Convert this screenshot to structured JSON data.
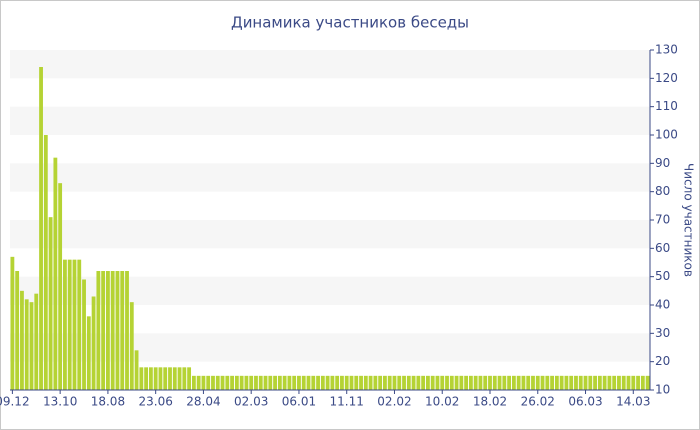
{
  "chart_data": {
    "type": "bar",
    "title": "Динамика участников беседы",
    "y_axis_label": "Число участников",
    "color": "#b5d334",
    "ylim": [
      10,
      130
    ],
    "yticks": [
      10,
      20,
      30,
      40,
      50,
      60,
      70,
      80,
      90,
      100,
      110,
      120,
      130
    ],
    "grid": "bands",
    "categories": [
      "09.12",
      null,
      null,
      null,
      null,
      null,
      null,
      null,
      null,
      null,
      "13.10",
      null,
      null,
      null,
      null,
      null,
      null,
      null,
      null,
      null,
      "18.08",
      null,
      null,
      null,
      null,
      null,
      null,
      null,
      null,
      null,
      "23.06",
      null,
      null,
      null,
      null,
      null,
      null,
      null,
      null,
      null,
      "28.04",
      null,
      null,
      null,
      null,
      null,
      null,
      null,
      null,
      null,
      "02.03",
      null,
      null,
      null,
      null,
      null,
      null,
      null,
      null,
      null,
      "06.01",
      null,
      null,
      null,
      null,
      null,
      null,
      null,
      null,
      null,
      "11.11",
      null,
      null,
      null,
      null,
      null,
      null,
      null,
      null,
      null,
      "02.02",
      null,
      null,
      null,
      null,
      null,
      null,
      null,
      null,
      null,
      "10.02",
      null,
      null,
      null,
      null,
      null,
      null,
      null,
      null,
      null,
      "18.02",
      null,
      null,
      null,
      null,
      null,
      null,
      null,
      null,
      null,
      "26.02",
      null,
      null,
      null,
      null,
      null,
      null,
      null,
      null,
      null,
      "06.03",
      null,
      null,
      null,
      null,
      null,
      null,
      null,
      null,
      null,
      "14.03",
      null,
      null,
      null
    ],
    "values": [
      57,
      52,
      45,
      42,
      41,
      44,
      124,
      100,
      71,
      92,
      83,
      56,
      56,
      56,
      56,
      49,
      36,
      43,
      52,
      52,
      52,
      52,
      52,
      52,
      52,
      41,
      24,
      18,
      18,
      18,
      18,
      18,
      18,
      18,
      18,
      18,
      18,
      18,
      15,
      15,
      15,
      15,
      15,
      15,
      15,
      15,
      15,
      15,
      15,
      15,
      15,
      15,
      15,
      15,
      15,
      15,
      15,
      15,
      15,
      15,
      15,
      15,
      15,
      15,
      15,
      15,
      15,
      15,
      15,
      15,
      15,
      15,
      15,
      15,
      15,
      15,
      15,
      15,
      15,
      15,
      15,
      15,
      15,
      15,
      15,
      15,
      15,
      15,
      15,
      15,
      15,
      15,
      15,
      15,
      15,
      15,
      15,
      15,
      15,
      15,
      15,
      15,
      15,
      15,
      15,
      15,
      15,
      15,
      15,
      15,
      15,
      15,
      15,
      15,
      15,
      15,
      15,
      15,
      15,
      15,
      15,
      15,
      15,
      15,
      15,
      15,
      15,
      15,
      15,
      15,
      15,
      15,
      15,
      15
    ]
  }
}
